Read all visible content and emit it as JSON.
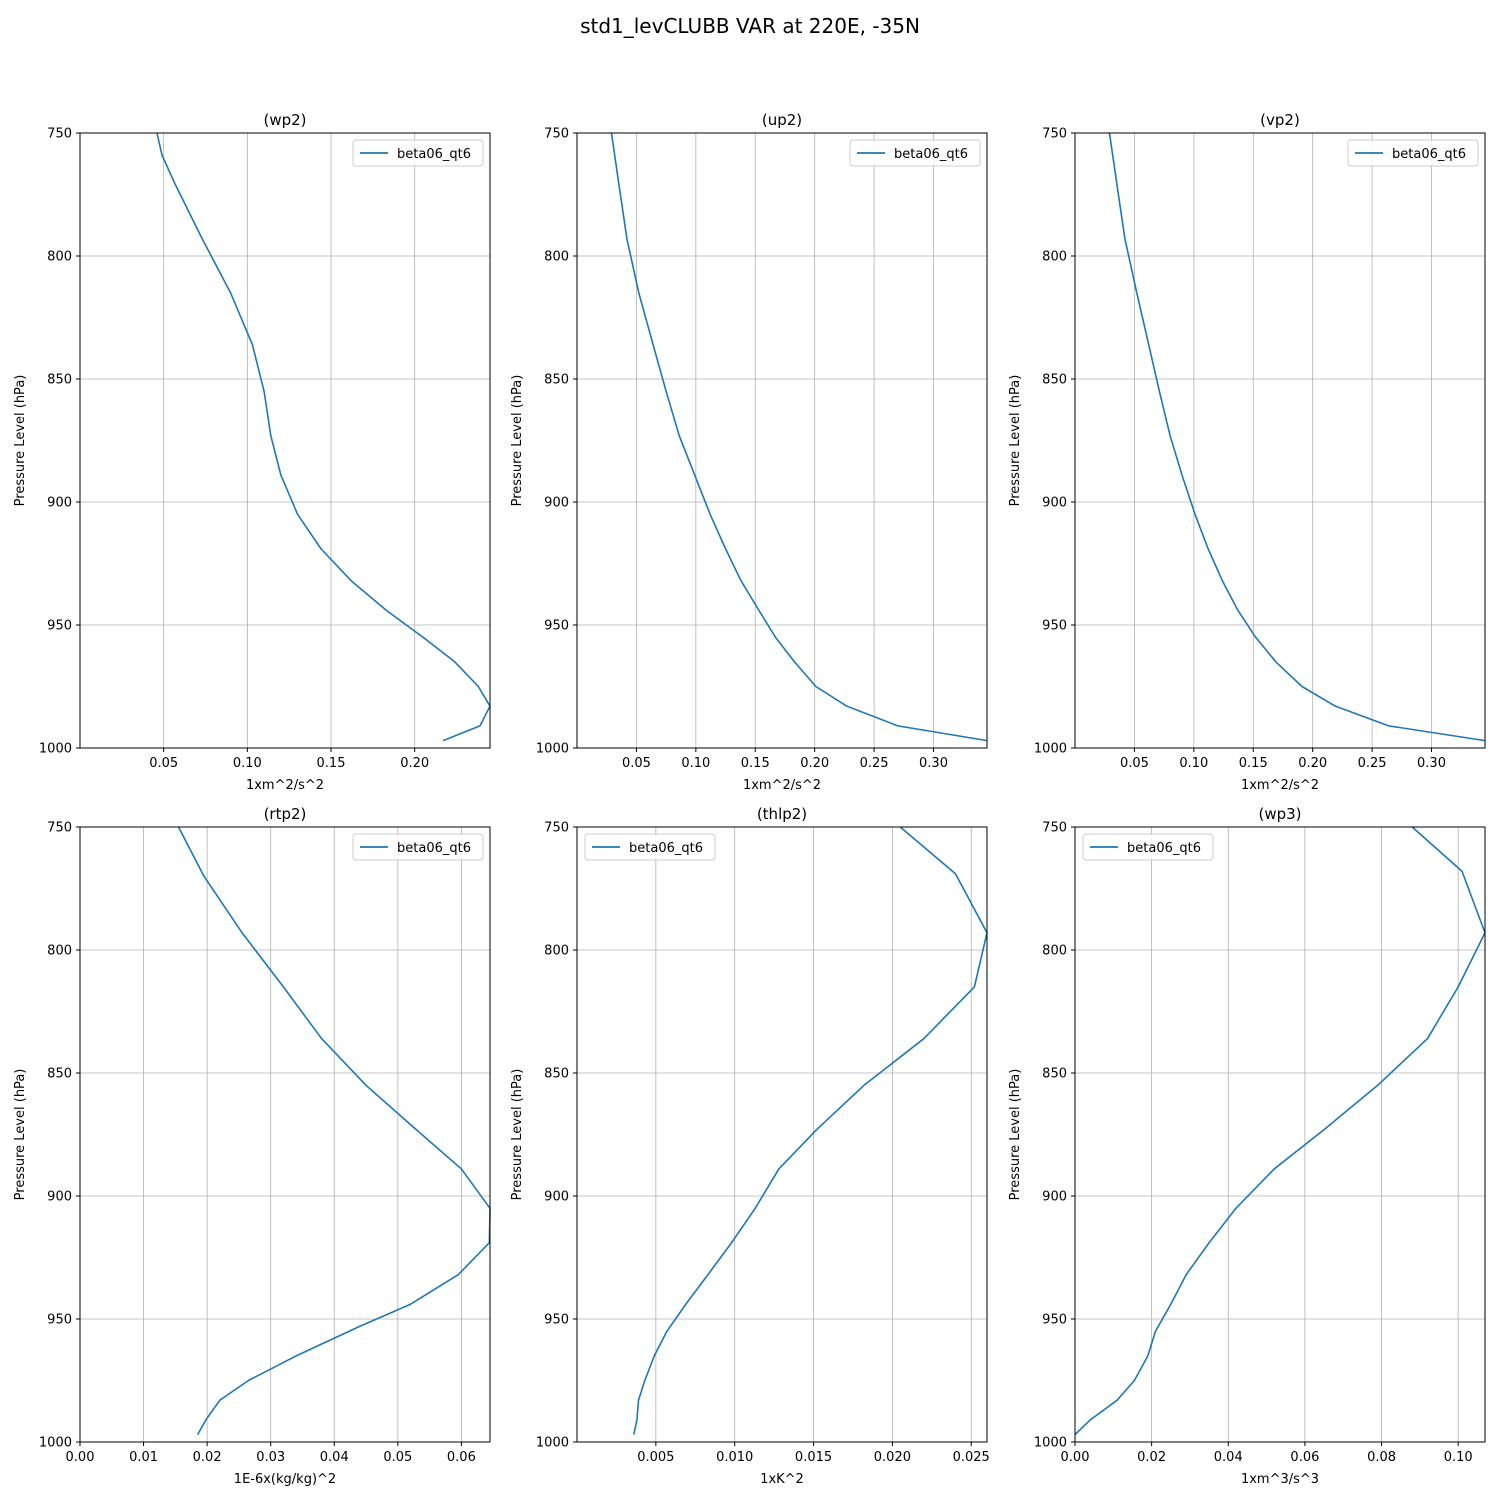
{
  "figure": {
    "title": "std1_levCLUBB VAR at 220E, -35N",
    "colors": {
      "line": "#1f77b4",
      "grid": "#b0b0b0",
      "axes": "#000000",
      "legend_border": "#cccccc"
    }
  },
  "chart_data": [
    {
      "type": "line",
      "title": "(wp2)",
      "xlabel": "1xm^2/s^2",
      "ylabel": "Pressure Level (hPa)",
      "xlim": [
        0.0,
        0.245
      ],
      "ylim": [
        1000,
        750
      ],
      "y_inverted": true,
      "xticks": [
        0.05,
        0.1,
        0.15,
        0.2
      ],
      "xtick_labels": [
        "0.05",
        "0.10",
        "0.15",
        "0.20"
      ],
      "yticks": [
        750,
        800,
        850,
        900,
        950,
        1000
      ],
      "ytick_labels": [
        "750",
        "800",
        "850",
        "900",
        "950",
        "1000"
      ],
      "grid": true,
      "legend": "top-right",
      "series": [
        {
          "name": "beta06_qt6",
          "x": [
            0.046,
            0.049,
            0.057,
            0.073,
            0.09,
            0.103,
            0.11,
            0.114,
            0.12,
            0.13,
            0.144,
            0.162,
            0.183,
            0.205,
            0.224,
            0.238,
            0.245,
            0.239,
            0.217
          ],
          "y": [
            750,
            759,
            771,
            793,
            815,
            836,
            855,
            873,
            889,
            905,
            919,
            932,
            944,
            955,
            965,
            975,
            983,
            991,
            997
          ]
        }
      ]
    },
    {
      "type": "line",
      "title": "(up2)",
      "xlabel": "1xm^2/s^2",
      "ylabel": "Pressure Level (hPa)",
      "xlim": [
        0.0,
        0.345
      ],
      "ylim": [
        1000,
        750
      ],
      "y_inverted": true,
      "xticks": [
        0.05,
        0.1,
        0.15,
        0.2,
        0.25,
        0.3
      ],
      "xtick_labels": [
        "0.05",
        "0.10",
        "0.15",
        "0.20",
        "0.25",
        "0.30"
      ],
      "yticks": [
        750,
        800,
        850,
        900,
        950,
        1000
      ],
      "ytick_labels": [
        "750",
        "800",
        "850",
        "900",
        "950",
        "1000"
      ],
      "grid": true,
      "legend": "top-right",
      "series": [
        {
          "name": "beta06_qt6",
          "x": [
            0.029,
            0.035,
            0.042,
            0.052,
            0.064,
            0.075,
            0.086,
            0.099,
            0.112,
            0.125,
            0.138,
            0.153,
            0.167,
            0.183,
            0.201,
            0.227,
            0.27,
            0.345
          ],
          "y": [
            750,
            770,
            793,
            815,
            836,
            855,
            873,
            889,
            905,
            919,
            932,
            944,
            955,
            965,
            975,
            983,
            991,
            997
          ]
        }
      ]
    },
    {
      "type": "line",
      "title": "(vp2)",
      "xlabel": "1xm^2/s^2",
      "ylabel": "Pressure Level (hPa)",
      "xlim": [
        0.0,
        0.345
      ],
      "ylim": [
        1000,
        750
      ],
      "y_inverted": true,
      "xticks": [
        0.05,
        0.1,
        0.15,
        0.2,
        0.25,
        0.3
      ],
      "xtick_labels": [
        "0.05",
        "0.10",
        "0.15",
        "0.20",
        "0.25",
        "0.30"
      ],
      "yticks": [
        750,
        800,
        850,
        900,
        950,
        1000
      ],
      "ytick_labels": [
        "750",
        "800",
        "850",
        "900",
        "950",
        "1000"
      ],
      "grid": true,
      "legend": "top-right",
      "series": [
        {
          "name": "beta06_qt6",
          "x": [
            0.029,
            0.035,
            0.042,
            0.052,
            0.062,
            0.071,
            0.08,
            0.09,
            0.101,
            0.112,
            0.124,
            0.137,
            0.152,
            0.169,
            0.191,
            0.219,
            0.264,
            0.345
          ],
          "y": [
            750,
            770,
            793,
            815,
            836,
            855,
            873,
            889,
            905,
            919,
            932,
            944,
            955,
            965,
            975,
            983,
            991,
            997
          ]
        }
      ]
    },
    {
      "type": "line",
      "title": "(rtp2)",
      "xlabel": "1E-6x(kg/kg)^2",
      "ylabel": "Pressure Level (hPa)",
      "xlim": [
        0.0,
        0.0645
      ],
      "ylim": [
        1000,
        750
      ],
      "y_inverted": true,
      "xticks": [
        0.0,
        0.01,
        0.02,
        0.03,
        0.04,
        0.05,
        0.06
      ],
      "xtick_labels": [
        "0.00",
        "0.01",
        "0.02",
        "0.03",
        "0.04",
        "0.05",
        "0.06"
      ],
      "yticks": [
        750,
        800,
        850,
        900,
        950,
        1000
      ],
      "ytick_labels": [
        "750",
        "800",
        "850",
        "900",
        "950",
        "1000"
      ],
      "grid": true,
      "legend": "top-right",
      "series": [
        {
          "name": "beta06_qt6",
          "x": [
            0.0155,
            0.0195,
            0.0255,
            0.032,
            0.038,
            0.045,
            0.052,
            0.06,
            0.0645,
            0.0644,
            0.0595,
            0.052,
            0.044,
            0.034,
            0.0265,
            0.022,
            0.0198,
            0.0185
          ],
          "y": [
            750,
            770,
            793,
            815,
            836,
            855,
            871,
            889,
            905,
            919,
            932,
            944,
            953,
            965,
            975,
            983,
            991,
            997
          ]
        }
      ]
    },
    {
      "type": "line",
      "title": "(thlp2)",
      "xlabel": "1xK^2",
      "ylabel": "Pressure Level (hPa)",
      "xlim": [
        0.0,
        0.026
      ],
      "ylim": [
        1000,
        750
      ],
      "y_inverted": true,
      "xticks": [
        0.005,
        0.01,
        0.015,
        0.02,
        0.025
      ],
      "xtick_labels": [
        "0.005",
        "0.010",
        "0.015",
        "0.020",
        "0.025"
      ],
      "yticks": [
        750,
        800,
        850,
        900,
        950,
        1000
      ],
      "ytick_labels": [
        "750",
        "800",
        "850",
        "900",
        "950",
        "1000"
      ],
      "grid": true,
      "legend": "top-left",
      "series": [
        {
          "name": "beta06_qt6",
          "x": [
            0.0205,
            0.024,
            0.026,
            0.0252,
            0.022,
            0.0182,
            0.0152,
            0.0128,
            0.0113,
            0.0098,
            0.0083,
            0.0069,
            0.0057,
            0.0049,
            0.0043,
            0.0039,
            0.0038,
            0.0036
          ],
          "y": [
            750,
            769,
            793,
            815,
            836,
            855,
            873,
            889,
            905,
            919,
            932,
            944,
            955,
            965,
            975,
            983,
            991,
            997
          ]
        }
      ]
    },
    {
      "type": "line",
      "title": "(wp3)",
      "xlabel": "1xm^3/s^3",
      "ylabel": "Pressure Level (hPa)",
      "xlim": [
        0.0,
        0.107
      ],
      "ylim": [
        1000,
        750
      ],
      "y_inverted": true,
      "xticks": [
        0.0,
        0.02,
        0.04,
        0.06,
        0.08,
        0.1
      ],
      "xtick_labels": [
        "0.00",
        "0.02",
        "0.04",
        "0.06",
        "0.08",
        "0.10"
      ],
      "yticks": [
        750,
        800,
        850,
        900,
        950,
        1000
      ],
      "ytick_labels": [
        "750",
        "800",
        "850",
        "900",
        "950",
        "1000"
      ],
      "grid": true,
      "legend": "top-left",
      "series": [
        {
          "name": "beta06_qt6",
          "x": [
            0.088,
            0.101,
            0.107,
            0.1,
            0.092,
            0.079,
            0.065,
            0.052,
            0.042,
            0.035,
            0.029,
            0.025,
            0.021,
            0.019,
            0.0155,
            0.011,
            0.004,
            0.0
          ],
          "y": [
            750,
            768,
            793,
            815,
            836,
            855,
            873,
            889,
            905,
            919,
            932,
            944,
            955,
            965,
            975,
            983,
            991,
            997
          ]
        }
      ]
    }
  ]
}
